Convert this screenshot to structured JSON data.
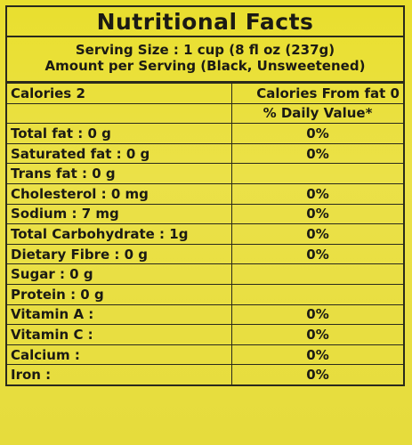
{
  "title": "Nutritional Facts",
  "serving_size": "Serving Size : 1 cup (8 fl oz (237g)",
  "amount_per_serving": "Amount per Serving (Black, Unsweetened)",
  "calories_label": "Calories 2",
  "calories_from_fat_label": "Calories From fat 0",
  "daily_value_header": "% Daily Value*",
  "rows": [
    {
      "nutrient": "Total fat : 0 g",
      "dv": "0%"
    },
    {
      "nutrient": "Saturated fat : 0 g",
      "dv": "0%"
    },
    {
      "nutrient": "Trans fat : 0 g",
      "dv": ""
    },
    {
      "nutrient": "Cholesterol : 0 mg",
      "dv": "0%"
    },
    {
      "nutrient": "Sodium : 7 mg",
      "dv": "0%"
    },
    {
      "nutrient": "Total Carbohydrate : 1g",
      "dv": "0%"
    },
    {
      "nutrient": "Dietary Fibre : 0 g",
      "dv": "0%"
    },
    {
      "nutrient": "Sugar : 0 g",
      "dv": ""
    },
    {
      "nutrient": "Protein : 0 g",
      "dv": ""
    },
    {
      "nutrient": "Vitamin A :",
      "dv": "0%"
    },
    {
      "nutrient": "Vitamin C :",
      "dv": "0%"
    },
    {
      "nutrient": "Calcium :",
      "dv": "0%"
    },
    {
      "nutrient": "Iron :",
      "dv": "0%"
    }
  ]
}
